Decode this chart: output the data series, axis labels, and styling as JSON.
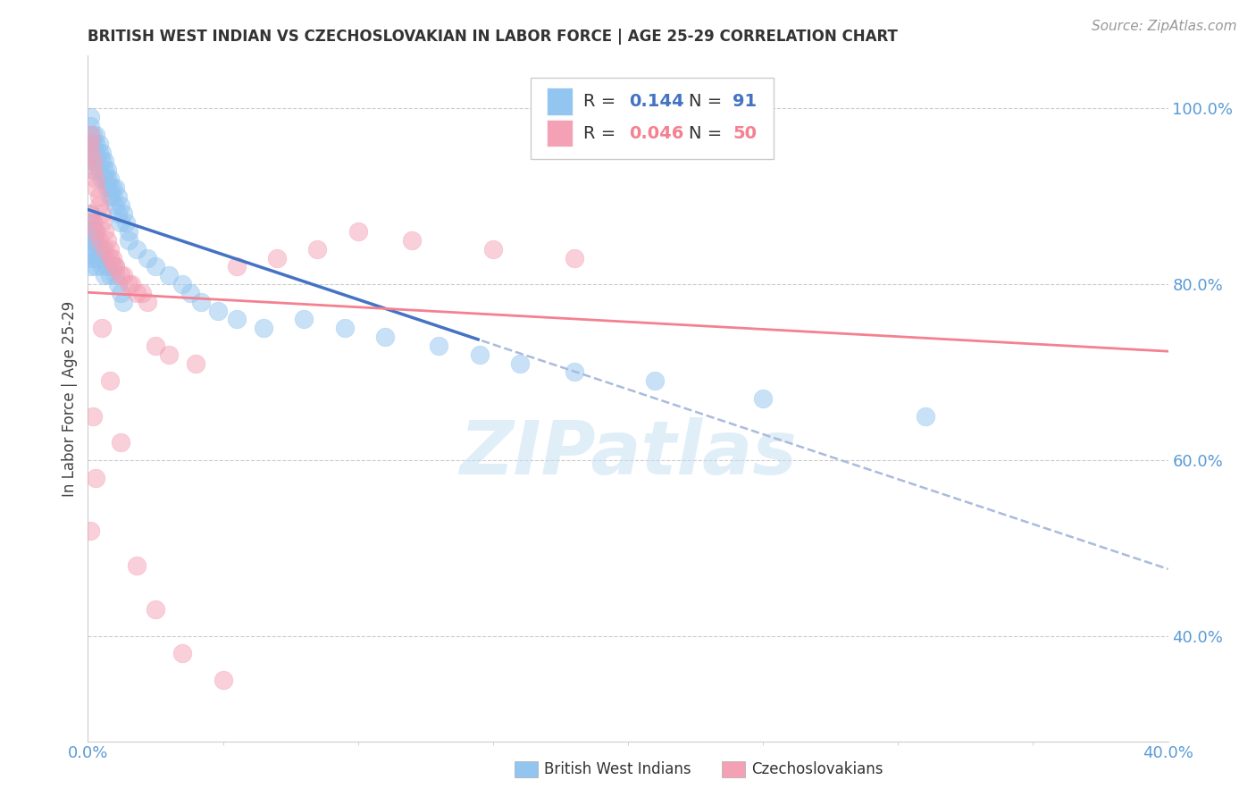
{
  "title": "BRITISH WEST INDIAN VS CZECHOSLOVAKIAN IN LABOR FORCE | AGE 25-29 CORRELATION CHART",
  "source": "Source: ZipAtlas.com",
  "ylabel": "In Labor Force | Age 25-29",
  "ytick_values": [
    1.0,
    0.8,
    0.6,
    0.4
  ],
  "xlim": [
    0.0,
    0.4
  ],
  "ylim": [
    0.28,
    1.06
  ],
  "legend_r1": "0.144",
  "legend_n1": "91",
  "legend_r2": "0.046",
  "legend_n2": "50",
  "blue_color": "#92C5F0",
  "pink_color": "#F4A0B5",
  "blue_line_color": "#4472C4",
  "pink_line_color": "#F48090",
  "dashed_color": "#AABBDD",
  "blue_scatter_x": [
    0.001,
    0.001,
    0.001,
    0.001,
    0.001,
    0.001,
    0.002,
    0.002,
    0.002,
    0.002,
    0.003,
    0.003,
    0.003,
    0.003,
    0.004,
    0.004,
    0.004,
    0.005,
    0.005,
    0.005,
    0.006,
    0.006,
    0.006,
    0.007,
    0.007,
    0.007,
    0.008,
    0.008,
    0.008,
    0.009,
    0.009,
    0.01,
    0.01,
    0.011,
    0.011,
    0.012,
    0.012,
    0.013,
    0.014,
    0.015,
    0.001,
    0.001,
    0.001,
    0.001,
    0.002,
    0.002,
    0.002,
    0.003,
    0.003,
    0.004,
    0.004,
    0.005,
    0.006,
    0.007,
    0.008,
    0.009,
    0.01,
    0.011,
    0.012,
    0.013,
    0.001,
    0.001,
    0.001,
    0.002,
    0.002,
    0.003,
    0.003,
    0.004,
    0.005,
    0.006,
    0.015,
    0.018,
    0.022,
    0.025,
    0.03,
    0.035,
    0.038,
    0.042,
    0.048,
    0.055,
    0.065,
    0.08,
    0.095,
    0.11,
    0.13,
    0.145,
    0.16,
    0.18,
    0.21,
    0.25,
    0.31
  ],
  "blue_scatter_y": [
    0.97,
    0.98,
    0.99,
    0.96,
    0.95,
    0.94,
    0.97,
    0.96,
    0.95,
    0.93,
    0.97,
    0.96,
    0.95,
    0.94,
    0.95,
    0.96,
    0.93,
    0.94,
    0.95,
    0.92,
    0.93,
    0.94,
    0.92,
    0.93,
    0.92,
    0.91,
    0.92,
    0.91,
    0.9,
    0.91,
    0.9,
    0.91,
    0.89,
    0.9,
    0.88,
    0.89,
    0.87,
    0.88,
    0.87,
    0.86,
    0.88,
    0.87,
    0.86,
    0.85,
    0.87,
    0.86,
    0.85,
    0.86,
    0.85,
    0.84,
    0.83,
    0.84,
    0.83,
    0.82,
    0.81,
    0.82,
    0.81,
    0.8,
    0.79,
    0.78,
    0.84,
    0.83,
    0.82,
    0.85,
    0.84,
    0.83,
    0.82,
    0.83,
    0.82,
    0.81,
    0.85,
    0.84,
    0.83,
    0.82,
    0.81,
    0.8,
    0.79,
    0.78,
    0.77,
    0.76,
    0.75,
    0.76,
    0.75,
    0.74,
    0.73,
    0.72,
    0.71,
    0.7,
    0.69,
    0.67,
    0.65
  ],
  "pink_scatter_x": [
    0.001,
    0.001,
    0.001,
    0.002,
    0.002,
    0.003,
    0.003,
    0.004,
    0.004,
    0.005,
    0.005,
    0.006,
    0.007,
    0.008,
    0.009,
    0.01,
    0.012,
    0.015,
    0.018,
    0.022,
    0.001,
    0.002,
    0.003,
    0.004,
    0.006,
    0.008,
    0.01,
    0.013,
    0.016,
    0.02,
    0.025,
    0.03,
    0.04,
    0.055,
    0.07,
    0.085,
    0.1,
    0.12,
    0.15,
    0.18,
    0.001,
    0.002,
    0.003,
    0.005,
    0.008,
    0.012,
    0.018,
    0.025,
    0.035,
    0.05
  ],
  "pink_scatter_y": [
    0.97,
    0.96,
    0.95,
    0.94,
    0.93,
    0.92,
    0.91,
    0.9,
    0.89,
    0.88,
    0.87,
    0.86,
    0.85,
    0.84,
    0.83,
    0.82,
    0.81,
    0.8,
    0.79,
    0.78,
    0.88,
    0.87,
    0.86,
    0.85,
    0.84,
    0.83,
    0.82,
    0.81,
    0.8,
    0.79,
    0.73,
    0.72,
    0.71,
    0.82,
    0.83,
    0.84,
    0.86,
    0.85,
    0.84,
    0.83,
    0.52,
    0.65,
    0.58,
    0.75,
    0.69,
    0.62,
    0.48,
    0.43,
    0.38,
    0.35
  ],
  "background_color": "#FFFFFF"
}
